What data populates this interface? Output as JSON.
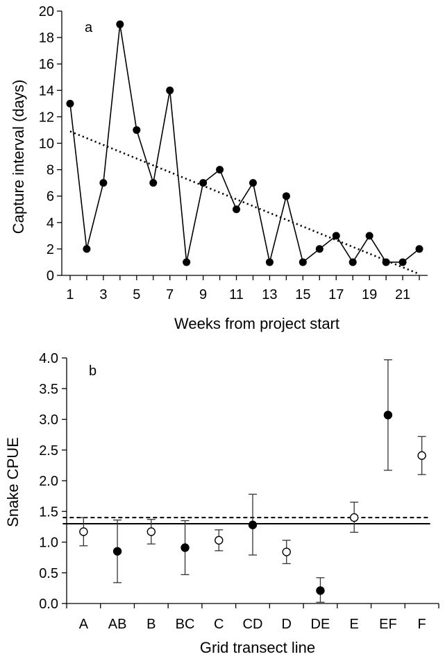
{
  "chart_data": [
    {
      "type": "line",
      "panel_label": "a",
      "xlabel": "Weeks from project start",
      "ylabel": "Capture interval (days)",
      "xlim": [
        0.5,
        22.5
      ],
      "ylim": [
        0,
        20
      ],
      "x_ticks": [
        1,
        3,
        5,
        7,
        9,
        11,
        13,
        15,
        17,
        19,
        21
      ],
      "y_ticks": [
        0,
        2,
        4,
        6,
        8,
        10,
        12,
        14,
        16,
        18,
        20
      ],
      "grid": false,
      "series": [
        {
          "marker": "filled-circle",
          "x": [
            1,
            2,
            3,
            4,
            5,
            6,
            7,
            8,
            9,
            10,
            11,
            12,
            13,
            14,
            15,
            16,
            17,
            18,
            19,
            20,
            21,
            22
          ],
          "y": [
            13,
            2,
            7,
            19,
            11,
            7,
            14,
            1,
            7,
            8,
            5,
            7,
            1,
            6,
            1,
            2,
            3,
            1,
            3,
            1,
            1,
            2
          ]
        }
      ],
      "trendline": {
        "style": "dotted",
        "x": [
          1,
          22
        ],
        "y": [
          10.9,
          0.1
        ]
      }
    },
    {
      "type": "scatter",
      "panel_label": "b",
      "xlabel": "Grid transect line",
      "ylabel": "Snake CPUE",
      "ylim": [
        0,
        4
      ],
      "y_ticks": [
        "0.0",
        "0.5",
        "1.0",
        "1.5",
        "2.0",
        "2.5",
        "3.0",
        "3.5",
        "4.0"
      ],
      "grid": false,
      "categories": [
        "A",
        "AB",
        "B",
        "BC",
        "C",
        "CD",
        "D",
        "DE",
        "E",
        "EF",
        "F"
      ],
      "values": [
        1.17,
        0.85,
        1.17,
        0.91,
        1.03,
        1.28,
        0.84,
        0.21,
        1.4,
        3.07,
        2.41
      ],
      "error_low": [
        0.94,
        0.34,
        0.97,
        0.47,
        0.86,
        0.79,
        0.65,
        0.02,
        1.16,
        2.17,
        2.1
      ],
      "error_high": [
        1.4,
        1.36,
        1.37,
        1.35,
        1.2,
        1.78,
        1.03,
        0.42,
        1.65,
        3.97,
        2.72
      ],
      "markers": [
        "open",
        "filled",
        "open",
        "filled",
        "open",
        "filled",
        "open",
        "filled",
        "open",
        "filled",
        "open"
      ],
      "reference_lines": [
        {
          "style": "solid",
          "y": 1.3
        },
        {
          "style": "dashed",
          "y": 1.4
        }
      ]
    }
  ]
}
